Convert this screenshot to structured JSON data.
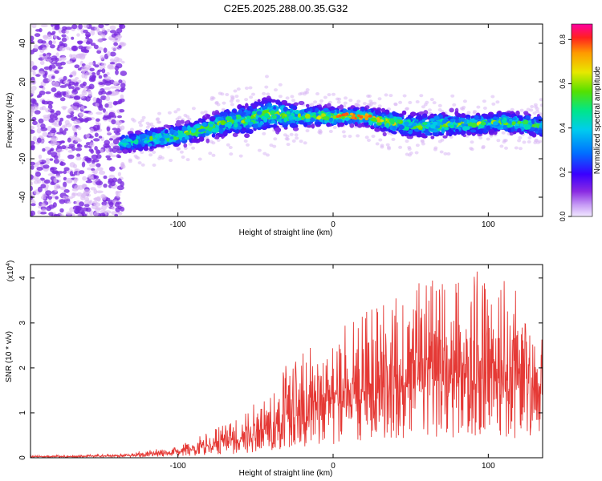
{
  "title": "C2E5.2025.288.00.35.G32",
  "colors": {
    "trace": "#e53935",
    "scatter_violet": "#7b2be0",
    "scatter_light": "#d8b8f4",
    "axis": "#000000"
  },
  "chart_data": [
    {
      "type": "heatmap",
      "title": "C2E5.2025.288.00.35.G32",
      "xlabel": "Height of straight line (km)",
      "ylabel": "Frequency (Hz)",
      "xlim": [
        -195,
        135
      ],
      "ylim": [
        -50,
        50
      ],
      "xticks": [
        -100,
        0,
        100
      ],
      "xtick_labels": [
        "-100",
        "0",
        "100"
      ],
      "yticks": [
        -40,
        -20,
        0,
        20,
        40
      ],
      "ytick_labels": [
        "-40",
        "-20",
        "0",
        "20",
        "40"
      ],
      "ridge": {
        "x": [
          -137,
          -120,
          -100,
          -80,
          -65,
          -55,
          -45,
          -35,
          -25,
          -15,
          0,
          10,
          20,
          30,
          45,
          60,
          75,
          90,
          110,
          135
        ],
        "center_hz": [
          -12,
          -10,
          -8,
          -4,
          0,
          0,
          3,
          3,
          2,
          2,
          2,
          2,
          2,
          0,
          -2,
          -3,
          -2,
          -2,
          -1,
          -3
        ],
        "halfwidth_hz": [
          5,
          6,
          6,
          7,
          8,
          9,
          10,
          9,
          7,
          6,
          5,
          5,
          5,
          6,
          7,
          7,
          7,
          6,
          6,
          6
        ]
      },
      "noise_region_x": [
        -195,
        -135
      ],
      "colorbar": {
        "label": "Normalized spectral amplitude",
        "range": [
          0.0,
          0.87
        ],
        "ticks": [
          0.0,
          0.2,
          0.4,
          0.6,
          0.8
        ],
        "tick_labels": [
          "0.0",
          "0.2",
          "0.4",
          "0.6",
          "0.8"
        ]
      }
    },
    {
      "type": "line",
      "xlabel": "Height of straight line (km)",
      "ylabel": "SNR (10 * v/v)",
      "y_multiplier": "(x10",
      "y_multiplier_exp": "4",
      "y_multiplier_close": ")",
      "xlim": [
        -195,
        135
      ],
      "ylim": [
        0,
        4.3
      ],
      "xticks": [
        -100,
        0,
        100
      ],
      "xtick_labels": [
        "-100",
        "0",
        "100"
      ],
      "yticks": [
        0,
        1,
        2,
        3,
        4
      ],
      "ytick_labels": [
        "0",
        "1",
        "2",
        "3",
        "4"
      ],
      "envelope": {
        "x": [
          -195,
          -140,
          -100,
          -80,
          -60,
          -40,
          -25,
          -10,
          0,
          15,
          30,
          40,
          55,
          70,
          85,
          100,
          120,
          135
        ],
        "y_max": [
          0.05,
          0.08,
          0.25,
          0.6,
          0.9,
          1.6,
          2.3,
          2.7,
          2.6,
          3.4,
          3.5,
          3.8,
          4.0,
          4.1,
          4.2,
          4.1,
          3.8,
          3.5
        ],
        "y_base": [
          0.02,
          0.03,
          0.1,
          0.2,
          0.3,
          0.5,
          0.7,
          0.9,
          1.0,
          1.2,
          1.3,
          1.4,
          1.5,
          1.5,
          1.5,
          1.5,
          1.4,
          1.4
        ]
      }
    }
  ]
}
